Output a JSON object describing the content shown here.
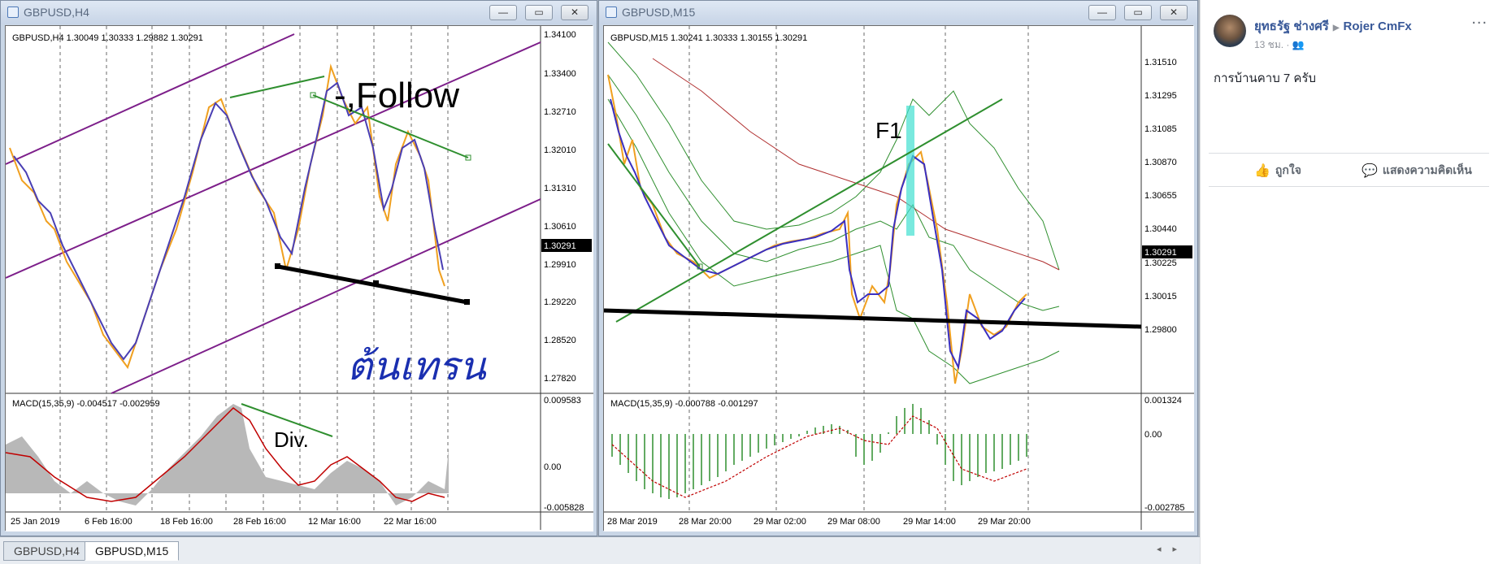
{
  "windows": {
    "left": {
      "title": "GBPUSD,H4",
      "info": "GBPUSD,H4  1.30049 1.30333 1.29882 1.30291",
      "price_axis": [
        "1.34100",
        "1.33400",
        "1.32710",
        "1.32010",
        "1.31310",
        "1.30610",
        "1.29910",
        "1.29220",
        "1.28520",
        "1.27820"
      ],
      "current_price": "1.30291",
      "time_axis": [
        "25 Jan 2019",
        "6 Feb 16:00",
        "18 Feb 16:00",
        "28 Feb 16:00",
        "12 Mar 16:00",
        "22 Mar 16:00"
      ],
      "annotations": {
        "follow": "-,Follow",
        "handwriting": "ต้นเทรน",
        "div": "Div."
      },
      "macd": {
        "label": "MACD(15,35,9) -0.004517 -0.002959",
        "axis": [
          "0.009583",
          "0.00",
          "-0.005828"
        ]
      }
    },
    "right": {
      "title": "GBPUSD,M15",
      "info": "GBPUSD,M15  1.30241 1.30333 1.30155 1.30291",
      "price_axis": [
        "1.31510",
        "1.31295",
        "1.31085",
        "1.30870",
        "1.30655",
        "1.30440",
        "1.30225",
        "1.30015",
        "1.29800"
      ],
      "current_price": "1.30291",
      "time_axis": [
        "28 Mar 2019",
        "28 Mar 20:00",
        "29 Mar 02:00",
        "29 Mar 08:00",
        "29 Mar 14:00",
        "29 Mar 20:00"
      ],
      "annotations": {
        "f1": "F1"
      },
      "macd": {
        "label": "MACD(15,35,9) -0.000788 -0.001297",
        "axis": [
          "0.001324",
          "0.00",
          "-0.002785"
        ]
      }
    }
  },
  "window_buttons": {
    "minimize": "—",
    "restore": "▭",
    "close": "✕"
  },
  "tabs": [
    {
      "label": "GBPUSD,H4",
      "active": false
    },
    {
      "label": "GBPUSD,M15",
      "active": true
    }
  ],
  "tab_scroll": {
    "left": "◂",
    "right": "▸"
  },
  "facebook": {
    "author": "ยุทธรัฐ ช่างศรี",
    "group": "Rojer CmFx",
    "time": "13 ชม.",
    "audience_icon": "group-icon",
    "menu": "...",
    "text": "การบ้านคาบ 7 ครับ",
    "like_label": "ถูกใจ",
    "comment_label": "แสดงความคิดเห็น",
    "like_icon": "thumbs-up-icon",
    "comment_icon": "comment-icon"
  },
  "colors": {
    "up_candle": "#4a3fb4",
    "down_candle": "#f0a020",
    "channel": "#7d1f8a",
    "trend_green": "#2f8f2f",
    "macd_signal": "#c00000"
  }
}
